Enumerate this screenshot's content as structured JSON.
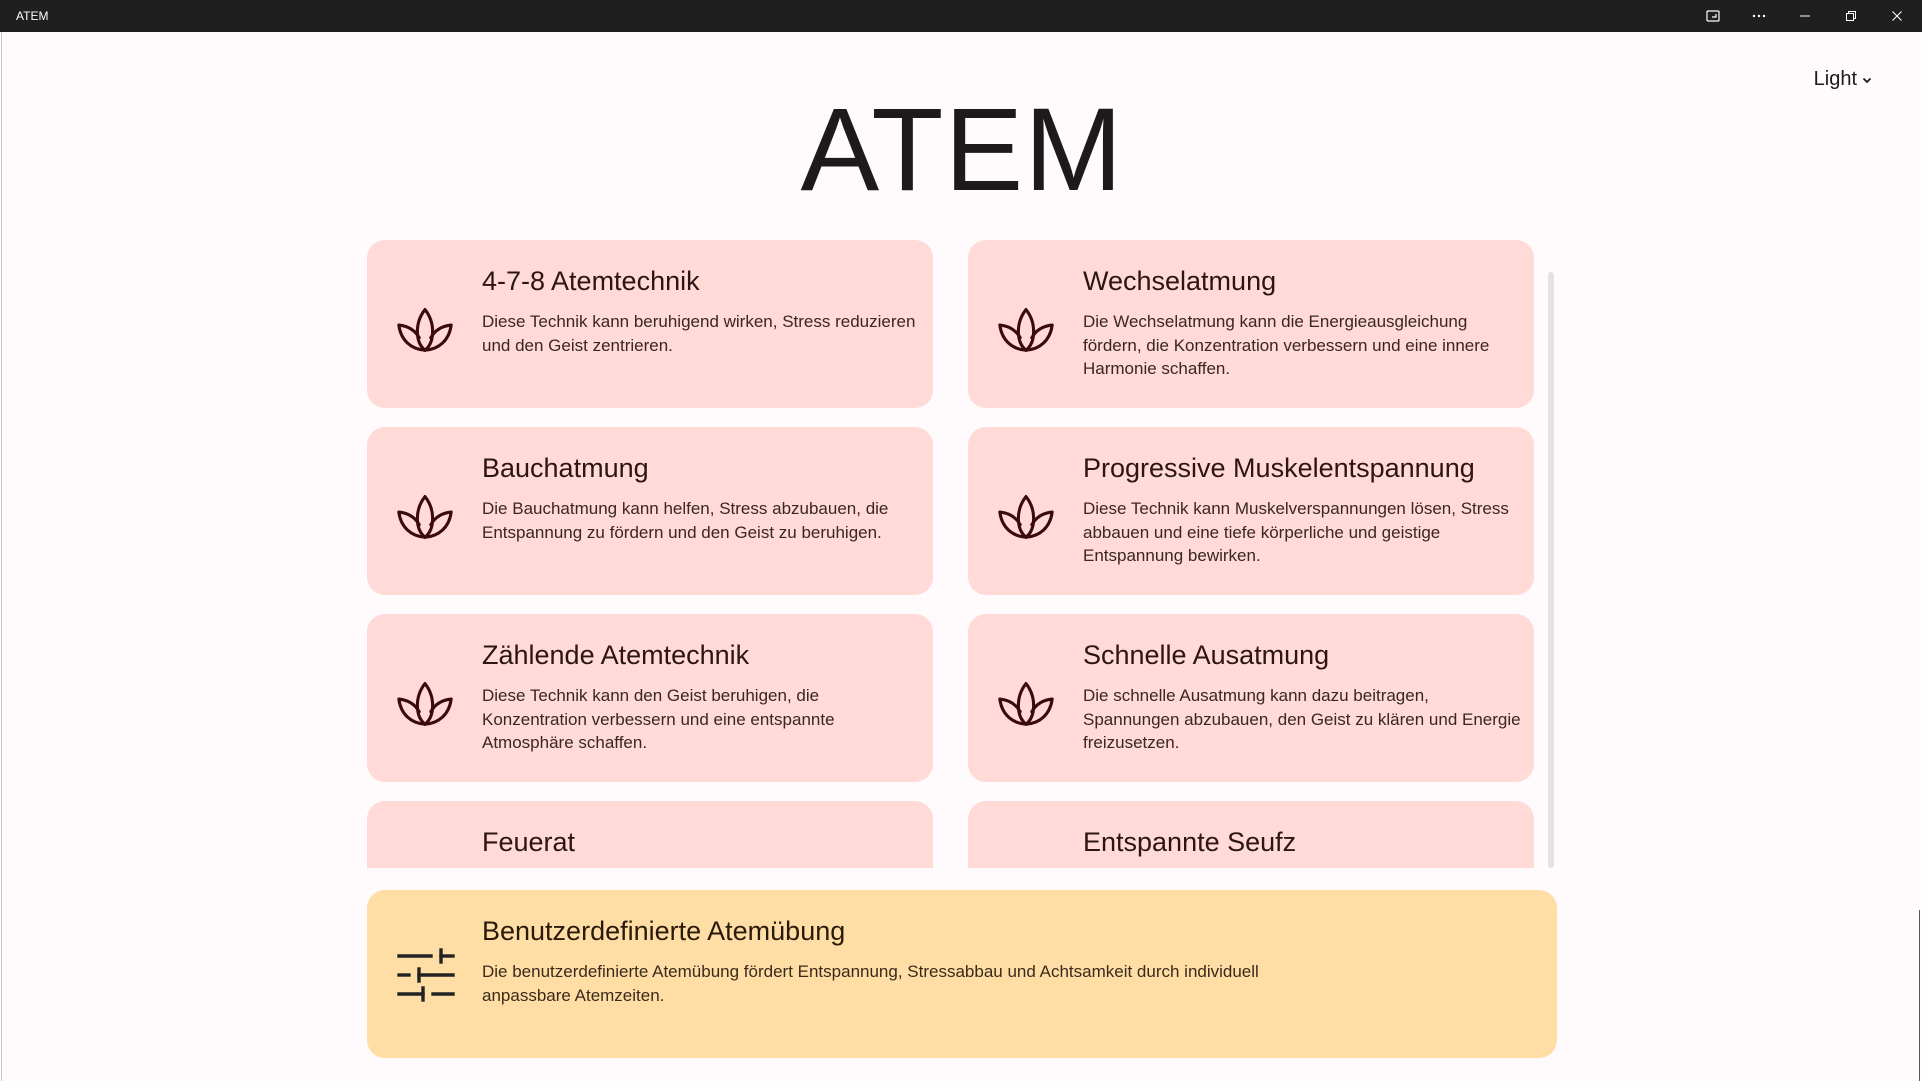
{
  "window": {
    "title": "ATEM",
    "icons": [
      "cast-icon",
      "more-icon",
      "minimize-icon",
      "restore-icon",
      "close-icon"
    ]
  },
  "header": {
    "title": "ATEM",
    "theme_selector": {
      "value": "Light",
      "icon": "chevron-down-icon"
    }
  },
  "exercises": [
    {
      "title": "4-7-8 Atemtechnik",
      "description": "Diese Technik kann beruhigend wirken, Stress reduzieren und den Geist zentrieren.",
      "icon": "lotus-icon"
    },
    {
      "title": "Wechselatmung",
      "description": "Die Wechselatmung kann die Energieausgleichung fördern, die Konzentration verbessern und eine innere Harmonie schaffen.",
      "icon": "lotus-icon"
    },
    {
      "title": "Bauchatmung",
      "description": "Die Bauchatmung kann helfen, Stress abzubauen, die Entspannung zu fördern und den Geist zu beruhigen.",
      "icon": "lotus-icon"
    },
    {
      "title": "Progressive Muskelentspannung",
      "description": "Diese Technik kann Muskelverspannungen lösen, Stress abbauen und eine tiefe körperliche und geistige Entspannung bewirken.",
      "icon": "lotus-icon"
    },
    {
      "title": "Zählende Atemtechnik",
      "description": "Diese Technik kann den Geist beruhigen, die Konzentration verbessern und eine entspannte Atmosphäre schaffen.",
      "icon": "lotus-icon"
    },
    {
      "title": "Schnelle Ausatmung",
      "description": "Die schnelle Ausatmung kann dazu beitragen, Spannungen abzubauen, den Geist zu klären und Energie freizusetzen.",
      "icon": "lotus-icon"
    },
    {
      "title": "Feuerat",
      "description": "",
      "icon": "lotus-icon"
    },
    {
      "title": "Entspannte Seufz",
      "description": "",
      "icon": "lotus-icon"
    }
  ],
  "custom_exercise": {
    "title": "Benutzerdefinierte Atemübung",
    "description": "Die benutzerdefinierte Atemübung fördert Entspannung, Stressabbau und Achtsamkeit durch individuell anpassbare Atemzeiten.",
    "icon": "sliders-icon"
  },
  "colors": {
    "card_background": "#ffdad7",
    "custom_card_background": "#ffdea6",
    "page_background": "#fffafc",
    "titlebar_background": "#1f1f1f",
    "icon_stroke": "#3b0a0e"
  }
}
